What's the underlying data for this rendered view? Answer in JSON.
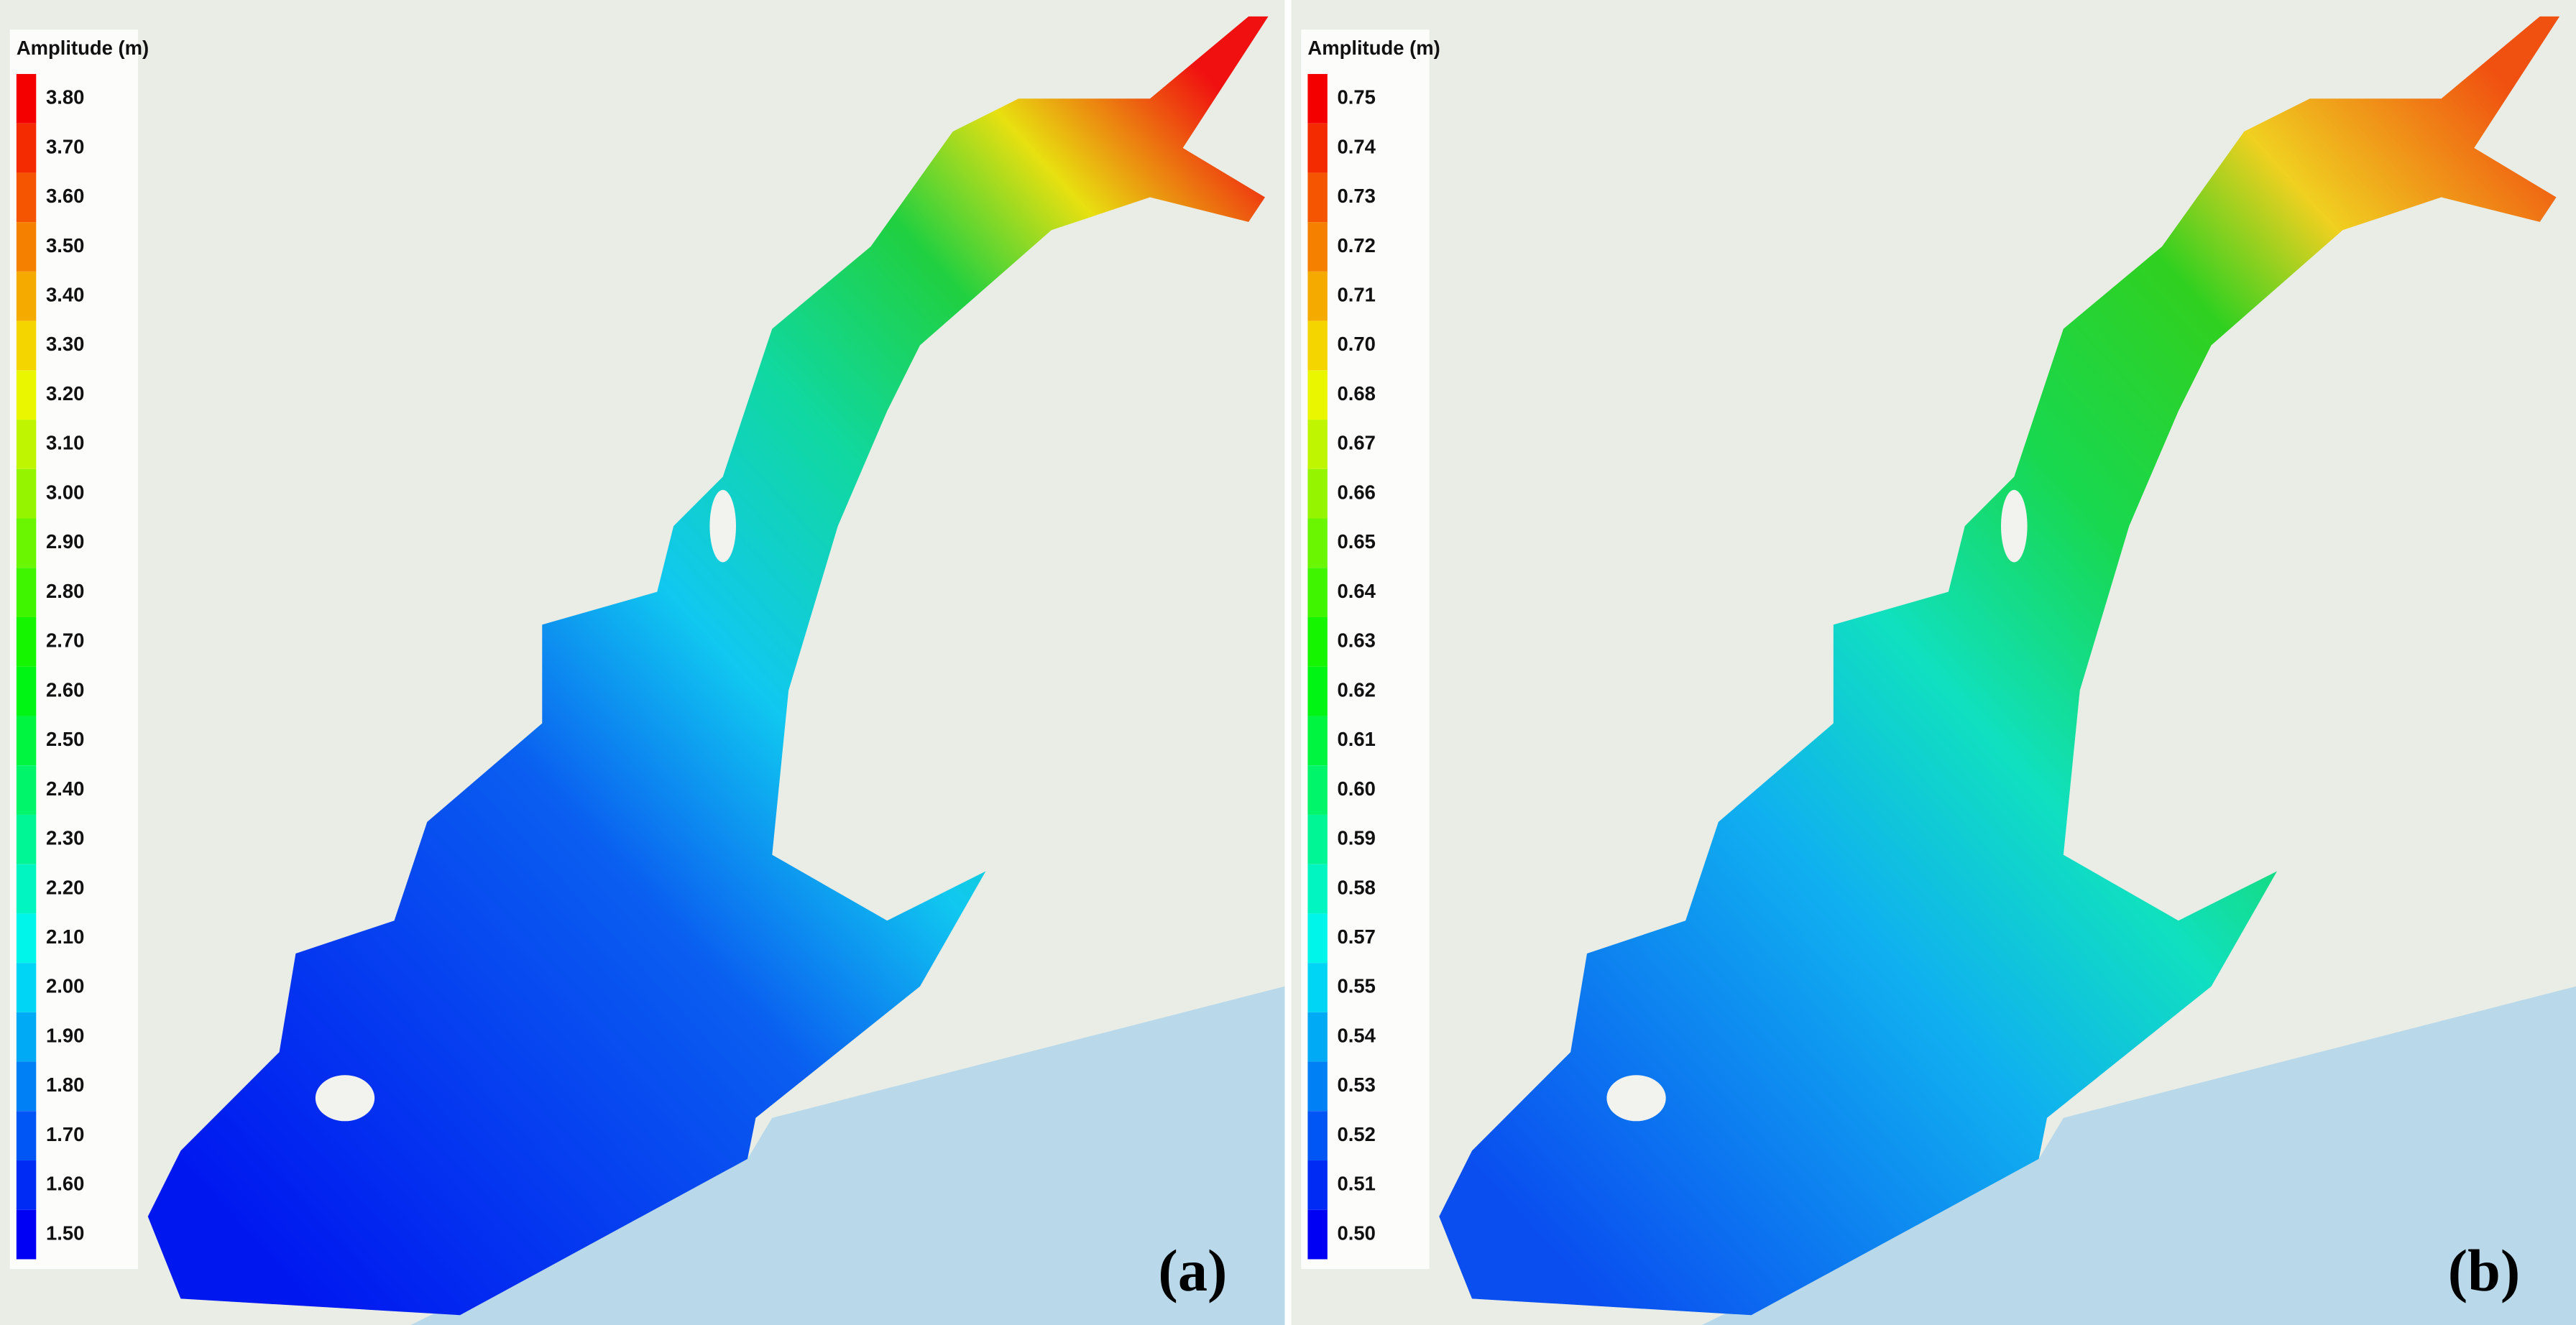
{
  "panels": [
    {
      "legend": {
        "title": "Amplitude (m)",
        "labels": [
          "3.80",
          "3.70",
          "3.60",
          "3.50",
          "3.40",
          "3.30",
          "3.20",
          "3.10",
          "3.00",
          "2.90",
          "2.80",
          "2.70",
          "2.60",
          "2.50",
          "2.40",
          "2.30",
          "2.20",
          "2.10",
          "2.00",
          "1.90",
          "1.80",
          "1.70",
          "1.60",
          "1.50"
        ]
      },
      "label": "(a)"
    },
    {
      "legend": {
        "title": "Amplitude (m)",
        "labels": [
          "0.75",
          "0.74",
          "0.73",
          "0.72",
          "0.71",
          "0.70",
          "0.68",
          "0.67",
          "0.66",
          "0.65",
          "0.64",
          "0.63",
          "0.62",
          "0.61",
          "0.60",
          "0.59",
          "0.58",
          "0.57",
          "0.55",
          "0.54",
          "0.53",
          "0.52",
          "0.51",
          "0.50"
        ]
      },
      "label": "(b)"
    }
  ]
}
